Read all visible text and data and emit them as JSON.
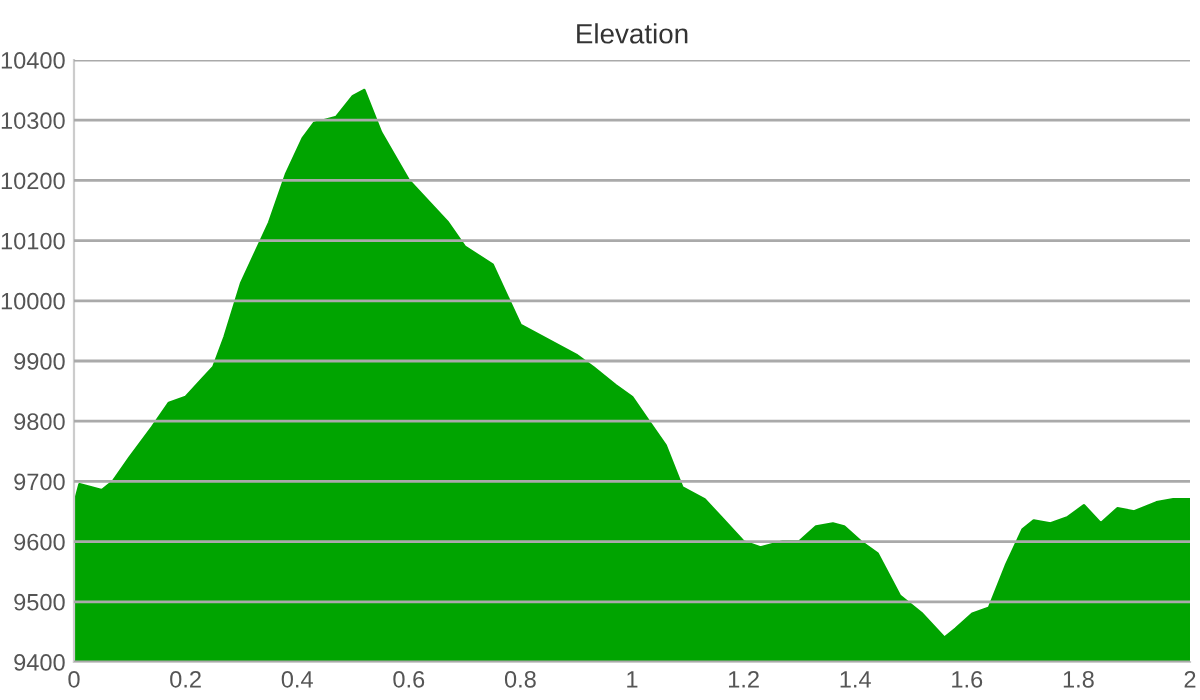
{
  "chart_data": {
    "type": "area",
    "title": "Elevation",
    "x": [
      0,
      0.01,
      0.05,
      0.07,
      0.1,
      0.14,
      0.17,
      0.2,
      0.23,
      0.25,
      0.27,
      0.3,
      0.35,
      0.38,
      0.41,
      0.43,
      0.47,
      0.5,
      0.52,
      0.55,
      0.6,
      0.64,
      0.67,
      0.7,
      0.75,
      0.78,
      0.8,
      0.84,
      0.88,
      0.9,
      0.93,
      0.97,
      1.0,
      1.03,
      1.06,
      1.09,
      1.13,
      1.16,
      1.2,
      1.23,
      1.27,
      1.3,
      1.33,
      1.36,
      1.38,
      1.41,
      1.44,
      1.48,
      1.52,
      1.56,
      1.58,
      1.61,
      1.64,
      1.67,
      1.7,
      1.72,
      1.75,
      1.78,
      1.81,
      1.84,
      1.87,
      1.9,
      1.94,
      1.97,
      2.0
    ],
    "series": [
      {
        "color": "#00a400",
        "values": [
          9660,
          9695,
          9685,
          9700,
          9740,
          9790,
          9830,
          9840,
          9870,
          9890,
          9940,
          10030,
          10130,
          10210,
          10270,
          10295,
          10305,
          10340,
          10350,
          10280,
          10200,
          10160,
          10130,
          10090,
          10060,
          10000,
          9960,
          9940,
          9920,
          9910,
          9890,
          9860,
          9840,
          9800,
          9760,
          9690,
          9670,
          9640,
          9600,
          9590,
          9600,
          9600,
          9625,
          9630,
          9625,
          9600,
          9580,
          9510,
          9480,
          9440,
          9455,
          9480,
          9490,
          9560,
          9620,
          9635,
          9630,
          9640,
          9660,
          9630,
          9655,
          9650,
          9665,
          9670,
          9670
        ]
      }
    ],
    "xlim": [
      0,
      2
    ],
    "xticks": [
      0,
      0.2,
      0.4,
      0.6,
      0.8,
      1,
      {
        "value": 1.2,
        "label": "1.2"
      },
      1.4,
      1.6,
      1.8,
      2
    ],
    "ylim": [
      9400,
      10400
    ],
    "yticks": [
      9400,
      9500,
      9600,
      9700,
      9800,
      9900,
      10000,
      10100,
      10200,
      10300,
      10400
    ],
    "grid": "y"
  }
}
